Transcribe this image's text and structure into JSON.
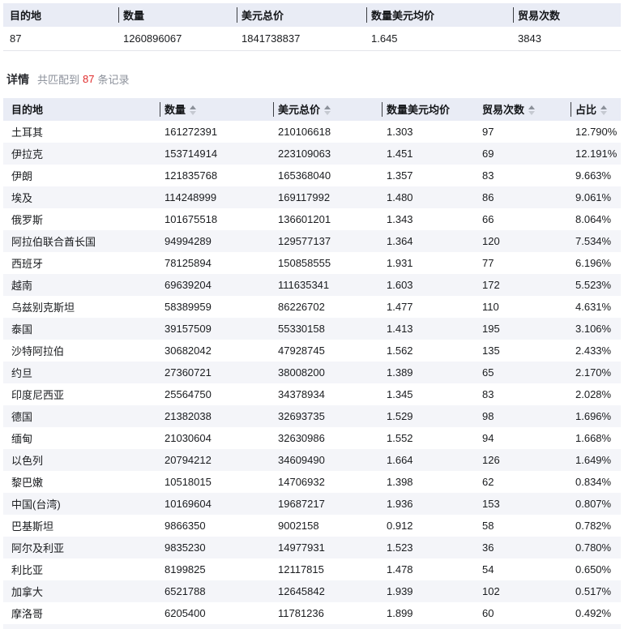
{
  "colors": {
    "header_bg": "#e9ecf5",
    "stripe_bg": "#f4f5f9",
    "match_count_red": "#e02b2b",
    "header_separator": "#3c3e43"
  },
  "summary_table": {
    "headers": [
      "目的地",
      "数量",
      "美元总价",
      "数量美元均价",
      "贸易次数"
    ],
    "row": [
      "87",
      "1260896067",
      "1841738837",
      "1.645",
      "3843"
    ]
  },
  "details_header": {
    "title": "详情",
    "match_prefix": "共匹配到",
    "match_count": "87",
    "match_suffix": "条记录"
  },
  "detail_table": {
    "columns": [
      {
        "key": "destination",
        "label": "目的地",
        "sortable": false
      },
      {
        "key": "quantity",
        "label": "数量",
        "sortable": true
      },
      {
        "key": "usd_total",
        "label": "美元总价",
        "sortable": true
      },
      {
        "key": "qty_usd_avg",
        "label": "数量美元均价",
        "sortable": false
      },
      {
        "key": "trade_count",
        "label": "贸易次数",
        "sortable": true
      },
      {
        "key": "share",
        "label": "占比",
        "sortable": true
      }
    ],
    "rows": [
      [
        "土耳其",
        "161272391",
        "210106618",
        "1.303",
        "97",
        "12.790%"
      ],
      [
        "伊拉克",
        "153714914",
        "223109063",
        "1.451",
        "69",
        "12.191%"
      ],
      [
        "伊朗",
        "121835768",
        "165368040",
        "1.357",
        "83",
        "9.663%"
      ],
      [
        "埃及",
        "114248999",
        "169117992",
        "1.480",
        "86",
        "9.061%"
      ],
      [
        "俄罗斯",
        "101675518",
        "136601201",
        "1.343",
        "66",
        "8.064%"
      ],
      [
        "阿拉伯联合酋长国",
        "94994289",
        "129577137",
        "1.364",
        "120",
        "7.534%"
      ],
      [
        "西班牙",
        "78125894",
        "150858555",
        "1.931",
        "77",
        "6.196%"
      ],
      [
        "越南",
        "69639204",
        "111635341",
        "1.603",
        "172",
        "5.523%"
      ],
      [
        "乌兹别克斯坦",
        "58389959",
        "86226702",
        "1.477",
        "110",
        "4.631%"
      ],
      [
        "泰国",
        "39157509",
        "55330158",
        "1.413",
        "195",
        "3.106%"
      ],
      [
        "沙特阿拉伯",
        "30682042",
        "47928745",
        "1.562",
        "135",
        "2.433%"
      ],
      [
        "约旦",
        "27360721",
        "38008200",
        "1.389",
        "65",
        "2.170%"
      ],
      [
        "印度尼西亚",
        "25564750",
        "34378934",
        "1.345",
        "83",
        "2.028%"
      ],
      [
        "德国",
        "21382038",
        "32693735",
        "1.529",
        "98",
        "1.696%"
      ],
      [
        "缅甸",
        "21030604",
        "32630986",
        "1.552",
        "94",
        "1.668%"
      ],
      [
        "以色列",
        "20794212",
        "34609490",
        "1.664",
        "126",
        "1.649%"
      ],
      [
        "黎巴嫩",
        "10518015",
        "14706932",
        "1.398",
        "62",
        "0.834%"
      ],
      [
        "中国(台湾)",
        "10169604",
        "19687217",
        "1.936",
        "153",
        "0.807%"
      ],
      [
        "巴基斯坦",
        "9866350",
        "9002158",
        "0.912",
        "58",
        "0.782%"
      ],
      [
        "阿尔及利亚",
        "9835230",
        "14977931",
        "1.523",
        "36",
        "0.780%"
      ],
      [
        "利比亚",
        "8199825",
        "12117815",
        "1.478",
        "54",
        "0.650%"
      ],
      [
        "加拿大",
        "6521788",
        "12645842",
        "1.939",
        "102",
        "0.517%"
      ],
      [
        "摩洛哥",
        "6205400",
        "11781236",
        "1.899",
        "60",
        "0.492%"
      ]
    ]
  }
}
